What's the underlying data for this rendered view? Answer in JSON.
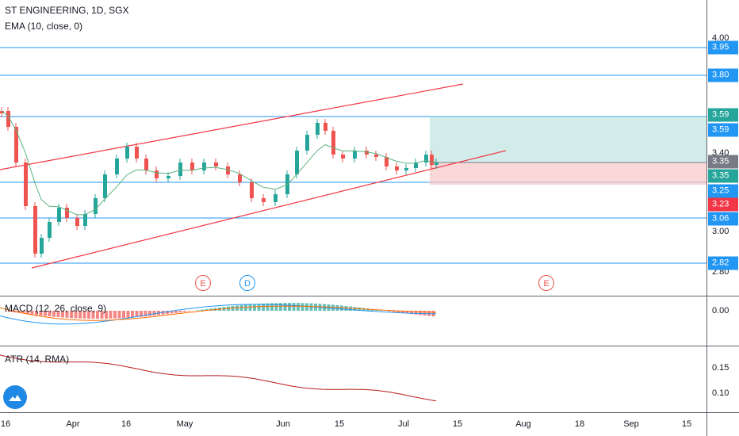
{
  "header": {
    "symbol_line": "ST ENGINEERING, 1D, SGX",
    "ema_label": "EMA (10, close, 0)"
  },
  "macd": {
    "label": "MACD (12, 26, close, 9)",
    "ticks": [
      "0.00"
    ]
  },
  "atr": {
    "label": "ATR (14, RMA)",
    "ticks": [
      "0.15",
      "0.10"
    ]
  },
  "price_axis": {
    "ticks": [
      "4.00",
      "3.40",
      "3.00",
      "2.80"
    ],
    "badges": [
      {
        "value": "3.95",
        "color": "#2196f3"
      },
      {
        "value": "3.80",
        "color": "#2196f3"
      },
      {
        "value": "3.59",
        "color": "#26a69a"
      },
      {
        "value": "3.59",
        "color": "#2196f3"
      },
      {
        "value": "3.35",
        "color": "#787b86"
      },
      {
        "value": "3.35",
        "color": "#26a69a"
      },
      {
        "value": "3.25",
        "color": "#2196f3"
      },
      {
        "value": "3.23",
        "color": "#f23645"
      },
      {
        "value": "3.06",
        "color": "#2196f3"
      },
      {
        "value": "2.82",
        "color": "#2196f3"
      }
    ]
  },
  "time_axis": [
    "16",
    "Apr",
    "16",
    "May",
    "Jun",
    "15",
    "Jul",
    "15",
    "Aug",
    "18",
    "Sep",
    "15"
  ],
  "events": [
    "E",
    "D",
    "E"
  ],
  "colors": {
    "up": "#26a69a",
    "down": "#ef5350",
    "level": "#2196f3",
    "channel": "#f23645",
    "ema": "#5bb380"
  },
  "icons": {
    "logo": "tradingview-cloud-icon"
  }
}
